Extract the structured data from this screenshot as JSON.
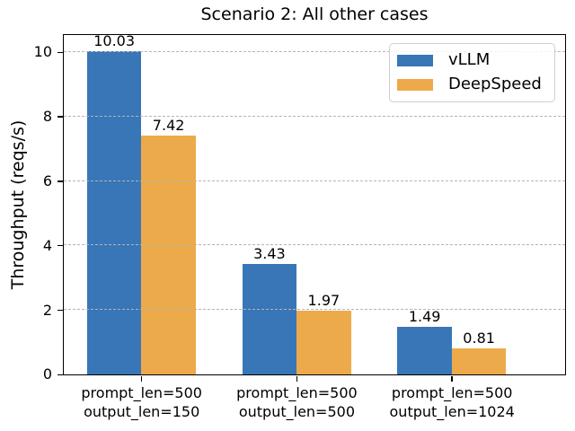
{
  "figure": {
    "background": "#ffffff"
  },
  "chart_data": {
    "type": "bar",
    "title": "Scenario 2: All other cases",
    "xlabel": "",
    "ylabel": "Throughput (reqs/s)",
    "categories": [
      "prompt_len=500\noutput_len=150",
      "prompt_len=500\noutput_len=500",
      "prompt_len=500\noutput_len=1024"
    ],
    "series": [
      {
        "name": "vLLM",
        "color": "#3876b8",
        "values": [
          10.03,
          3.43,
          1.49
        ]
      },
      {
        "name": "DeepSpeed",
        "color": "#edaa4a",
        "values": [
          7.42,
          1.97,
          0.81
        ]
      }
    ],
    "bar_labels": [
      [
        "10.03",
        "3.43",
        "1.49"
      ],
      [
        "7.42",
        "1.97",
        "0.81"
      ]
    ],
    "yticks": [
      0,
      2,
      4,
      6,
      8,
      10
    ],
    "ylim": [
      0,
      10.53
    ],
    "xlim": [
      -0.5,
      2.73
    ],
    "bar_width": 0.35,
    "grid": {
      "axis": "y",
      "style": "dashed",
      "color": "#b4b4b4",
      "over_bars": true
    },
    "legend": {
      "position": "upper right",
      "entries": [
        "vLLM",
        "DeepSpeed"
      ]
    },
    "axis_color": "#000000"
  }
}
